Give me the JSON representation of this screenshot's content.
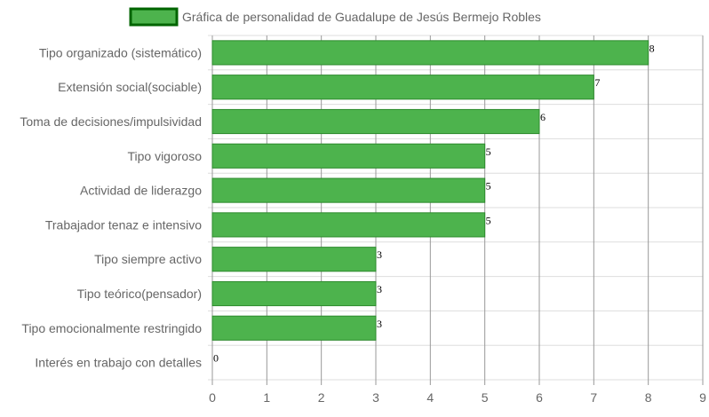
{
  "chart_data": {
    "type": "bar",
    "orientation": "horizontal",
    "title": "",
    "categories": [
      "Tipo organizado (sistemático)",
      "Extensión social(sociable)",
      "Toma de decisiones/impulsividad",
      "Tipo vigoroso",
      "Actividad de liderazgo",
      "Trabajador tenaz e intensivo",
      "Tipo siempre activo",
      "Tipo teórico(pensador)",
      "Tipo emocionalmente restringido",
      "Interés en trabajo con detalles"
    ],
    "series": [
      {
        "name": "Gráfica de personalidad de Guadalupe de Jesús Bermejo Robles",
        "values": [
          8,
          7,
          6,
          5,
          5,
          5,
          3,
          3,
          3,
          0
        ],
        "color": "#4db34d",
        "border_color": "#2e8b2e"
      }
    ],
    "data_labels": [
      "8",
      "7",
      "6",
      "5",
      "5",
      "5",
      "3",
      "3",
      "3",
      "0"
    ],
    "xlim": [
      0,
      9
    ],
    "x_ticks": [
      "0",
      "1",
      "2",
      "3",
      "4",
      "5",
      "6",
      "7",
      "8",
      "9"
    ],
    "xlabel": "",
    "ylabel": "",
    "grid": true,
    "legend_position": "top"
  },
  "colors": {
    "grid": "#dddddd",
    "vertical_grid": "#999999",
    "axis": "#999999"
  }
}
